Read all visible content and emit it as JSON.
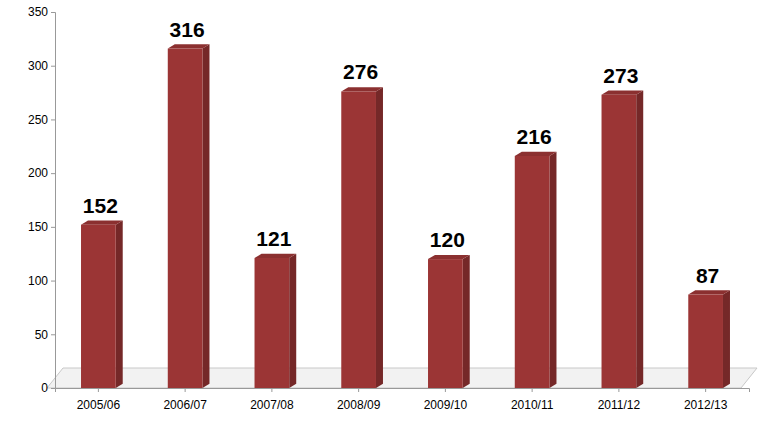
{
  "chart_data": {
    "type": "bar",
    "categories": [
      "2005/06",
      "2006/07",
      "2007/08",
      "2008/09",
      "2009/10",
      "2010/11",
      "2011/12",
      "2012/13"
    ],
    "values": [
      152,
      316,
      121,
      276,
      120,
      216,
      273,
      87
    ],
    "color": "#9b3535",
    "ylim": [
      0,
      350
    ],
    "yticks": [
      0,
      50,
      100,
      150,
      200,
      250,
      300,
      350
    ],
    "grid": false,
    "data_labels": true
  }
}
